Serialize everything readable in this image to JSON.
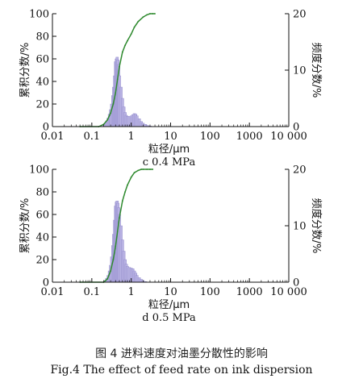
{
  "figure_caption_cn": "图 4    进料速度对油墨分散性的影响",
  "figure_caption_en": "Fig.4 The effect of feed rate on ink dispersion",
  "colors": {
    "bar": "#b9b3e3",
    "bar_stroke": "#8a83c7",
    "curve": "#2f8a2f",
    "axis": "#111111"
  },
  "chart_data": [
    {
      "type": "bar",
      "title": "c 0.4 MPa",
      "xlabel": "粒径/μm",
      "ylabel_left": "累积分数/%",
      "ylabel_right": "频度分数/%",
      "xscale": "log",
      "xlim": [
        0.01,
        10000
      ],
      "xticks": [
        "0.01",
        "0.1",
        "1",
        "10",
        "100",
        "1000",
        "10 000"
      ],
      "ylim_left": [
        0,
        100
      ],
      "yticks_left": [
        "0",
        "20",
        "40",
        "60",
        "80",
        "100"
      ],
      "ylim_right": [
        0,
        20
      ],
      "yticks_right": [
        "0",
        "10",
        "20"
      ],
      "grid": false,
      "series": [
        {
          "kind": "histogram",
          "axis": "right",
          "x": [
            0.2,
            0.22,
            0.24,
            0.26,
            0.28,
            0.3,
            0.32,
            0.34,
            0.36,
            0.38,
            0.4,
            0.42,
            0.44,
            0.46,
            0.48,
            0.5,
            0.55,
            0.6,
            0.65,
            0.7,
            0.75,
            0.8,
            0.9,
            1.0,
            1.1,
            1.2,
            1.3,
            1.4,
            1.6,
            1.8,
            2.0,
            2.3,
            2.6,
            3.0
          ],
          "values": [
            0.3,
            0.6,
            1.0,
            1.5,
            2.2,
            3.0,
            4.0,
            5.5,
            7.0,
            9.0,
            11.5,
            12.0,
            12.3,
            11.8,
            11.0,
            9.0,
            7.0,
            5.0,
            3.5,
            2.5,
            2.0,
            1.8,
            1.8,
            1.9,
            2.1,
            2.3,
            2.2,
            1.9,
            1.4,
            0.9,
            0.6,
            0.4,
            0.2,
            0.1
          ]
        },
        {
          "kind": "cumulative",
          "axis": "left",
          "x": [
            0.05,
            0.15,
            0.2,
            0.25,
            0.3,
            0.35,
            0.4,
            0.45,
            0.5,
            0.6,
            0.7,
            0.8,
            1.0,
            1.2,
            1.5,
            2.0,
            2.5,
            3.0,
            3.5,
            4.0
          ],
          "values": [
            0,
            0,
            2,
            6,
            12,
            20,
            30,
            42,
            53,
            66,
            72,
            76,
            82,
            88,
            93,
            97,
            99,
            100,
            100,
            100
          ]
        }
      ]
    },
    {
      "type": "bar",
      "title": "d 0.5 MPa",
      "xlabel": "粒径/μm",
      "ylabel_left": "累积分数/%",
      "ylabel_right": "频度分数/%",
      "xscale": "log",
      "xlim": [
        0.01,
        10000
      ],
      "xticks": [
        "0.01",
        "0.1",
        "1",
        "10",
        "100",
        "1000",
        "10 000"
      ],
      "ylim_left": [
        0,
        100
      ],
      "yticks_left": [
        "0",
        "20",
        "40",
        "60",
        "80",
        "100"
      ],
      "ylim_right": [
        0,
        20
      ],
      "yticks_right": [
        "0",
        "10",
        "20"
      ],
      "grid": false,
      "series": [
        {
          "kind": "histogram",
          "axis": "right",
          "x": [
            0.22,
            0.24,
            0.26,
            0.28,
            0.3,
            0.32,
            0.34,
            0.36,
            0.38,
            0.4,
            0.42,
            0.44,
            0.46,
            0.48,
            0.5,
            0.55,
            0.6,
            0.65,
            0.7,
            0.75,
            0.8,
            0.9,
            1.0,
            1.1,
            1.2,
            1.3,
            1.4,
            1.6,
            1.8,
            2.0,
            2.3
          ],
          "values": [
            0.3,
            0.7,
            1.2,
            2.0,
            3.0,
            4.5,
            6.5,
            8.5,
            11.0,
            13.5,
            14.2,
            14.4,
            14.0,
            13.2,
            12.0,
            10.0,
            7.5,
            5.5,
            4.0,
            3.2,
            2.8,
            2.6,
            2.5,
            2.4,
            2.0,
            1.6,
            1.2,
            0.8,
            0.5,
            0.3,
            0.1
          ]
        },
        {
          "kind": "cumulative",
          "axis": "left",
          "x": [
            0.05,
            0.2,
            0.25,
            0.3,
            0.35,
            0.4,
            0.45,
            0.5,
            0.6,
            0.7,
            0.8,
            1.0,
            1.2,
            1.5,
            1.8,
            2.0,
            2.5,
            3.0,
            3.5
          ],
          "values": [
            0,
            0,
            3,
            10,
            20,
            32,
            45,
            57,
            72,
            80,
            86,
            93,
            97,
            99,
            100,
            100,
            100,
            100,
            100
          ]
        }
      ]
    }
  ]
}
